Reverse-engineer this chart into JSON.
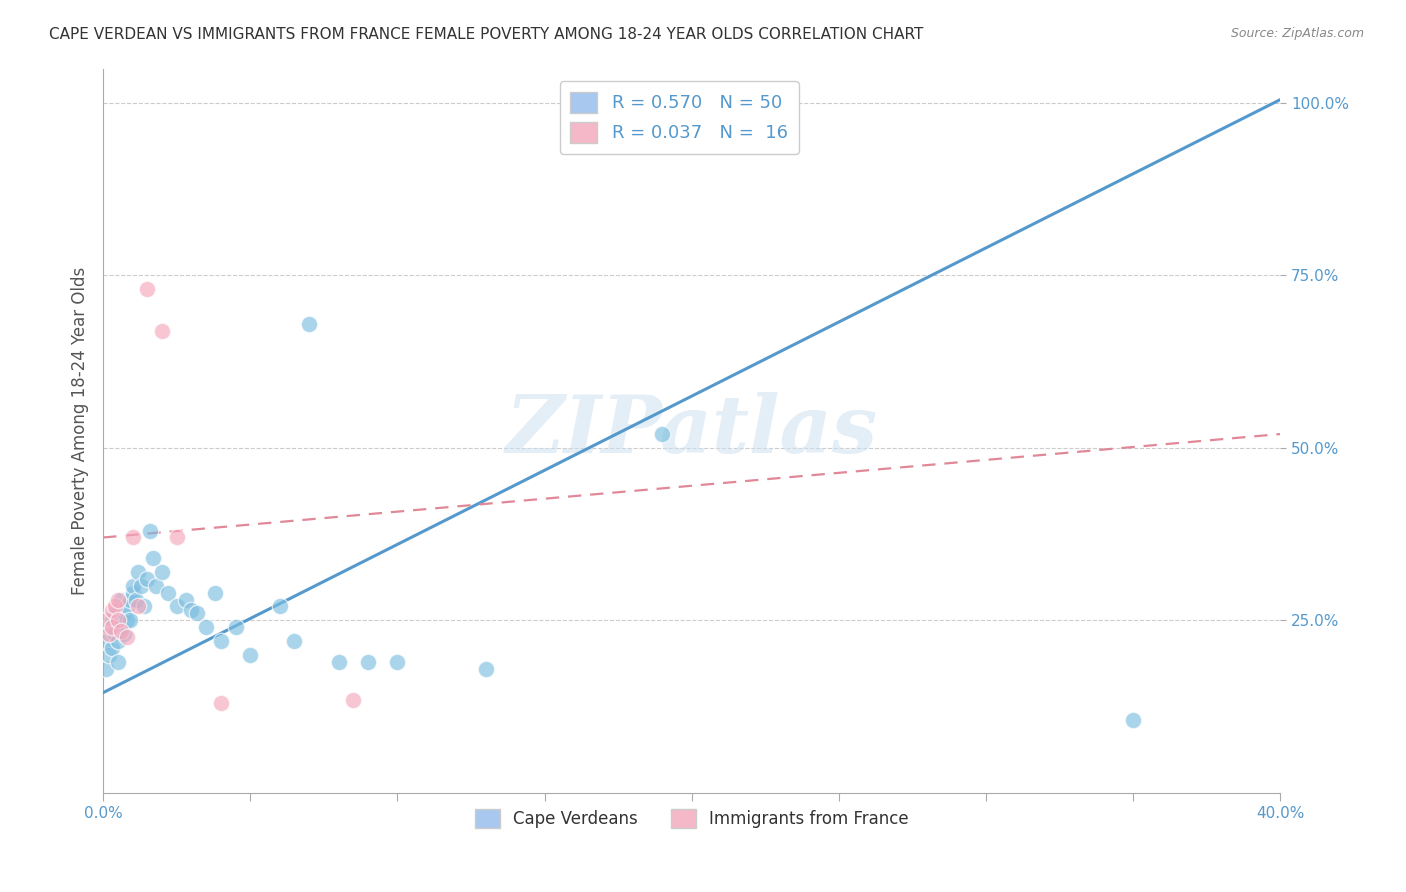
{
  "title": "CAPE VERDEAN VS IMMIGRANTS FROM FRANCE FEMALE POVERTY AMONG 18-24 YEAR OLDS CORRELATION CHART",
  "source": "Source: ZipAtlas.com",
  "ylabel": "Female Poverty Among 18-24 Year Olds",
  "watermark": "ZIPatlas",
  "bg_color": "#ffffff",
  "blue_color": "#7bbde0",
  "pink_color": "#f5a8bc",
  "blue_line_color": "#5599cc",
  "pink_line_color": "#e08898",
  "grid_color": "#cccccc",
  "xlim": [
    0.0,
    0.4
  ],
  "ylim": [
    0.0,
    1.05
  ],
  "blue_line_x": [
    0.0,
    0.4
  ],
  "blue_line_y": [
    0.145,
    1.005
  ],
  "pink_line_x": [
    0.0,
    0.4
  ],
  "pink_line_y": [
    0.37,
    0.52
  ],
  "blue_x": [
    0.001,
    0.001,
    0.002,
    0.002,
    0.003,
    0.003,
    0.004,
    0.004,
    0.005,
    0.005,
    0.005,
    0.006,
    0.006,
    0.007,
    0.007,
    0.008,
    0.008,
    0.009,
    0.009,
    0.01,
    0.01,
    0.011,
    0.012,
    0.013,
    0.014,
    0.015,
    0.016,
    0.017,
    0.018,
    0.02,
    0.022,
    0.025,
    0.028,
    0.03,
    0.032,
    0.035,
    0.038,
    0.04,
    0.045,
    0.05,
    0.06,
    0.065,
    0.07,
    0.08,
    0.09,
    0.1,
    0.13,
    0.19,
    0.22,
    0.35
  ],
  "blue_y": [
    0.22,
    0.18,
    0.2,
    0.24,
    0.21,
    0.25,
    0.23,
    0.26,
    0.22,
    0.25,
    0.19,
    0.24,
    0.28,
    0.23,
    0.26,
    0.25,
    0.27,
    0.25,
    0.28,
    0.29,
    0.3,
    0.28,
    0.32,
    0.3,
    0.27,
    0.31,
    0.38,
    0.34,
    0.3,
    0.32,
    0.29,
    0.27,
    0.28,
    0.265,
    0.26,
    0.24,
    0.29,
    0.22,
    0.24,
    0.2,
    0.27,
    0.22,
    0.68,
    0.19,
    0.19,
    0.19,
    0.18,
    0.52,
    1.0,
    0.105
  ],
  "pink_x": [
    0.001,
    0.002,
    0.003,
    0.003,
    0.004,
    0.005,
    0.005,
    0.006,
    0.008,
    0.01,
    0.012,
    0.015,
    0.02,
    0.025,
    0.04,
    0.085
  ],
  "pink_y": [
    0.25,
    0.23,
    0.265,
    0.24,
    0.27,
    0.25,
    0.28,
    0.235,
    0.225,
    0.37,
    0.27,
    0.73,
    0.67,
    0.37,
    0.13,
    0.135
  ]
}
